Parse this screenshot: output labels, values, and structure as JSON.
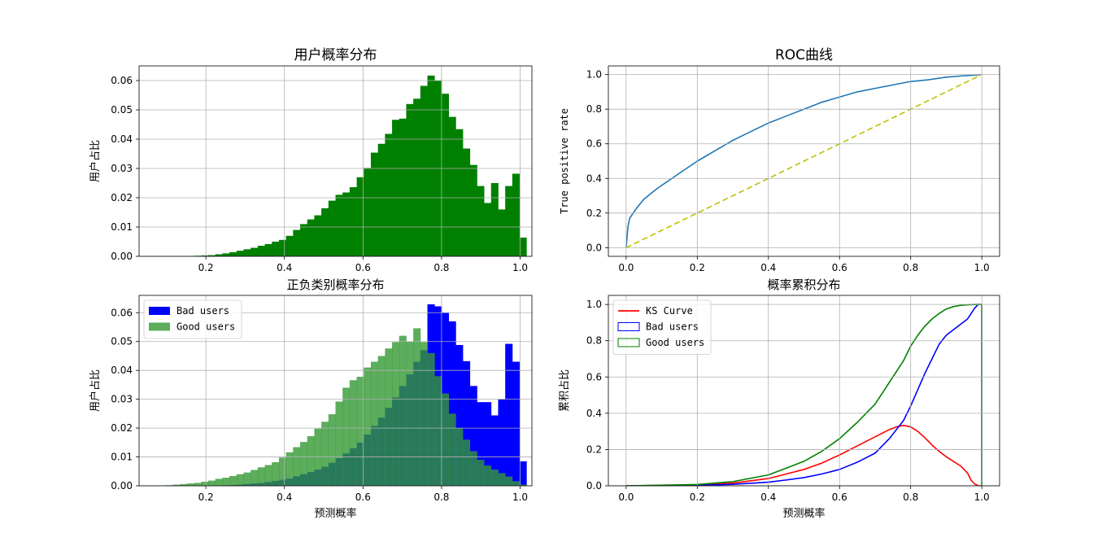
{
  "chart_data": [
    {
      "type": "bar",
      "subtype": "histogram",
      "title": "用户概率分布",
      "xlabel": "",
      "ylabel": "用户占比",
      "xlim": [
        0.03,
        1.03
      ],
      "ylim": [
        0,
        0.065
      ],
      "xticks": [
        "0.2",
        "0.4",
        "0.6",
        "0.8",
        "1.0"
      ],
      "yticks": [
        "0.00",
        "0.01",
        "0.02",
        "0.03",
        "0.04",
        "0.05",
        "0.06"
      ],
      "grid": true,
      "color": "#008000",
      "bin_start": 0.08,
      "bin_width": 0.018,
      "values": [
        0,
        0,
        0,
        0,
        0,
        0.0002,
        0.0003,
        0.0004,
        0.0007,
        0.001,
        0.0014,
        0.0019,
        0.0024,
        0.0029,
        0.0036,
        0.0042,
        0.005,
        0.0056,
        0.007,
        0.009,
        0.011,
        0.0126,
        0.014,
        0.0164,
        0.019,
        0.021,
        0.0218,
        0.0236,
        0.027,
        0.0302,
        0.0354,
        0.0384,
        0.0418,
        0.0466,
        0.047,
        0.052,
        0.0538,
        0.0582,
        0.0617,
        0.06,
        0.0555,
        0.0476,
        0.0434,
        0.0368,
        0.0312,
        0.024,
        0.0182,
        0.025,
        0.016,
        0.024,
        0.0282,
        0.0064
      ]
    },
    {
      "type": "line",
      "title": "ROC曲线",
      "xlabel": "",
      "ylabel": "True positive rate",
      "xlim": [
        -0.05,
        1.05
      ],
      "ylim": [
        -0.05,
        1.05
      ],
      "xticks": [
        "0.0",
        "0.2",
        "0.4",
        "0.6",
        "0.8",
        "1.0"
      ],
      "yticks": [
        "0.0",
        "0.2",
        "0.4",
        "0.6",
        "0.8",
        "1.0"
      ],
      "grid": true,
      "series": [
        {
          "color": "#1f77b4",
          "x": [
            0,
            0.005,
            0.01,
            0.02,
            0.03,
            0.05,
            0.08,
            0.1,
            0.15,
            0.2,
            0.25,
            0.3,
            0.35,
            0.4,
            0.45,
            0.5,
            0.55,
            0.6,
            0.65,
            0.7,
            0.75,
            0.8,
            0.85,
            0.9,
            0.95,
            1.0
          ],
          "y": [
            0,
            0.12,
            0.17,
            0.2,
            0.23,
            0.28,
            0.33,
            0.36,
            0.43,
            0.5,
            0.56,
            0.62,
            0.67,
            0.72,
            0.76,
            0.8,
            0.84,
            0.87,
            0.9,
            0.92,
            0.94,
            0.96,
            0.97,
            0.985,
            0.993,
            1.0
          ]
        },
        {
          "color": "#bfbf00",
          "dash": "dashed",
          "x": [
            0,
            1
          ],
          "y": [
            0,
            1
          ]
        }
      ]
    },
    {
      "type": "bar",
      "subtype": "histogram",
      "title": "正负类别概率分布",
      "xlabel": "预测概率",
      "ylabel": "用户占比",
      "xlim": [
        0.03,
        1.03
      ],
      "ylim": [
        0,
        0.066
      ],
      "xticks": [
        "0.2",
        "0.4",
        "0.6",
        "0.8",
        "1.0"
      ],
      "yticks": [
        "0.00",
        "0.01",
        "0.02",
        "0.03",
        "0.04",
        "0.05",
        "0.06"
      ],
      "grid": true,
      "legend_position": "top-left",
      "bin_start": 0.08,
      "bin_width": 0.018,
      "series": [
        {
          "name": "Bad users",
          "color": "#0000ff",
          "values": [
            0,
            0,
            0,
            0,
            0,
            0,
            0,
            0.0001,
            0.0001,
            0.0002,
            0.0003,
            0.0004,
            0.0006,
            0.0008,
            0.001,
            0.0013,
            0.0017,
            0.0021,
            0.0025,
            0.0033,
            0.004,
            0.0048,
            0.0056,
            0.0066,
            0.008,
            0.0096,
            0.0112,
            0.013,
            0.015,
            0.0178,
            0.0208,
            0.0236,
            0.027,
            0.0306,
            0.0346,
            0.0386,
            0.043,
            0.047,
            0.0629,
            0.0622,
            0.06,
            0.057,
            0.0488,
            0.0432,
            0.0346,
            0.029,
            0.029,
            0.0244,
            0.03,
            0.0492,
            0.043,
            0.0085
          ]
        },
        {
          "name": "Good users",
          "color": "#339933",
          "values": [
            0.0001,
            0.0002,
            0.0004,
            0.0006,
            0.0008,
            0.001,
            0.0014,
            0.0018,
            0.0024,
            0.0028,
            0.0034,
            0.004,
            0.0046,
            0.0055,
            0.0064,
            0.0072,
            0.0082,
            0.0098,
            0.0116,
            0.0134,
            0.0152,
            0.0172,
            0.0198,
            0.0222,
            0.0248,
            0.0292,
            0.034,
            0.0366,
            0.0378,
            0.041,
            0.043,
            0.045,
            0.0476,
            0.0498,
            0.052,
            0.05,
            0.0546,
            0.0498,
            0.046,
            0.038,
            0.032,
            0.025,
            0.02,
            0.016,
            0.012,
            0.009,
            0.007,
            0.0056,
            0.0044,
            0.0032,
            0.0016,
            0.0004
          ]
        }
      ]
    },
    {
      "type": "line",
      "title": "概率累积分布",
      "xlabel": "预测概率",
      "ylabel": "累积占比",
      "xlim": [
        -0.05,
        1.05
      ],
      "ylim": [
        0,
        1.05
      ],
      "xticks": [
        "0.0",
        "0.2",
        "0.4",
        "0.6",
        "0.8",
        "1.0"
      ],
      "yticks": [
        "0.0",
        "0.2",
        "0.4",
        "0.6",
        "0.8",
        "1.0"
      ],
      "grid": true,
      "legend_position": "top-left",
      "series": [
        {
          "name": "KS Curve",
          "color": "#ff0000",
          "x": [
            0,
            0.2,
            0.3,
            0.4,
            0.45,
            0.5,
            0.55,
            0.6,
            0.65,
            0.7,
            0.74,
            0.76,
            0.78,
            0.8,
            0.82,
            0.84,
            0.86,
            0.88,
            0.9,
            0.92,
            0.94,
            0.96,
            0.97,
            0.98,
            0.99,
            1.0
          ],
          "y": [
            0,
            0.005,
            0.015,
            0.04,
            0.065,
            0.09,
            0.125,
            0.17,
            0.22,
            0.27,
            0.31,
            0.325,
            0.333,
            0.325,
            0.3,
            0.265,
            0.225,
            0.19,
            0.16,
            0.135,
            0.11,
            0.07,
            0.03,
            0.01,
            0.0,
            0.0
          ]
        },
        {
          "name": "Bad users",
          "color": "#0000ff",
          "x": [
            0,
            0.2,
            0.3,
            0.4,
            0.45,
            0.5,
            0.55,
            0.6,
            0.65,
            0.7,
            0.74,
            0.78,
            0.8,
            0.82,
            0.84,
            0.86,
            0.88,
            0.9,
            0.92,
            0.94,
            0.96,
            0.98,
            0.99,
            1.0,
            1.0
          ],
          "y": [
            0,
            0.002,
            0.008,
            0.02,
            0.032,
            0.045,
            0.065,
            0.09,
            0.13,
            0.18,
            0.26,
            0.36,
            0.44,
            0.53,
            0.62,
            0.7,
            0.78,
            0.83,
            0.86,
            0.89,
            0.92,
            0.98,
            1.0,
            1.0,
            0.0
          ]
        },
        {
          "name": "Good users",
          "color": "#008000",
          "x": [
            0,
            0.2,
            0.3,
            0.4,
            0.45,
            0.5,
            0.55,
            0.6,
            0.65,
            0.7,
            0.74,
            0.78,
            0.8,
            0.82,
            0.84,
            0.86,
            0.88,
            0.9,
            0.92,
            0.94,
            0.96,
            0.98,
            1.0,
            1.0
          ],
          "y": [
            0,
            0.007,
            0.023,
            0.06,
            0.097,
            0.135,
            0.19,
            0.26,
            0.35,
            0.45,
            0.57,
            0.69,
            0.77,
            0.83,
            0.88,
            0.92,
            0.95,
            0.975,
            0.988,
            0.995,
            0.998,
            1.0,
            1.0,
            0.0
          ]
        }
      ]
    }
  ]
}
